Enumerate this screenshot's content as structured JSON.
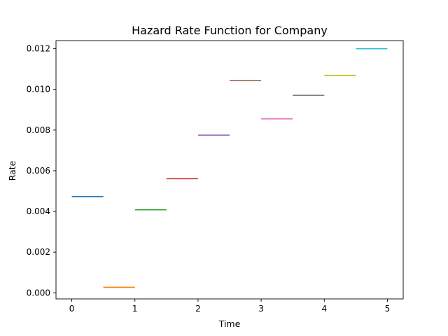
{
  "chart_data": {
    "type": "line",
    "title": "Hazard Rate Function for Company",
    "xlabel": "Time",
    "ylabel": "Rate",
    "xlim": [
      -0.25,
      5.25
    ],
    "ylim": [
      -0.0003,
      0.0124
    ],
    "x_ticks": [
      0,
      1,
      2,
      3,
      4,
      5
    ],
    "x_tick_labels": [
      "0",
      "1",
      "2",
      "3",
      "4",
      "5"
    ],
    "y_ticks": [
      0.0,
      0.002,
      0.004,
      0.006,
      0.008,
      0.01,
      0.012
    ],
    "y_tick_labels": [
      "0.000",
      "0.002",
      "0.004",
      "0.006",
      "0.008",
      "0.010",
      "0.012"
    ],
    "grid": false,
    "legend": "none",
    "segments": [
      {
        "x_start": 0.0,
        "x_end": 0.5,
        "value": 0.00473,
        "color": "#1f77b4"
      },
      {
        "x_start": 0.5,
        "x_end": 1.0,
        "value": 0.00027,
        "color": "#ff7f0e"
      },
      {
        "x_start": 1.0,
        "x_end": 1.5,
        "value": 0.00408,
        "color": "#2ca02c"
      },
      {
        "x_start": 1.5,
        "x_end": 2.0,
        "value": 0.00561,
        "color": "#d62728"
      },
      {
        "x_start": 2.0,
        "x_end": 2.5,
        "value": 0.00775,
        "color": "#9467bd"
      },
      {
        "x_start": 2.5,
        "x_end": 3.0,
        "value": 0.01043,
        "color": "#8c564b"
      },
      {
        "x_start": 3.0,
        "x_end": 3.5,
        "value": 0.00855,
        "color": "#e377c2"
      },
      {
        "x_start": 3.5,
        "x_end": 4.0,
        "value": 0.00971,
        "color": "#7f7f7f"
      },
      {
        "x_start": 4.0,
        "x_end": 4.5,
        "value": 0.01069,
        "color": "#bcbd22"
      },
      {
        "x_start": 4.5,
        "x_end": 5.0,
        "value": 0.012,
        "color": "#17becf"
      }
    ]
  }
}
